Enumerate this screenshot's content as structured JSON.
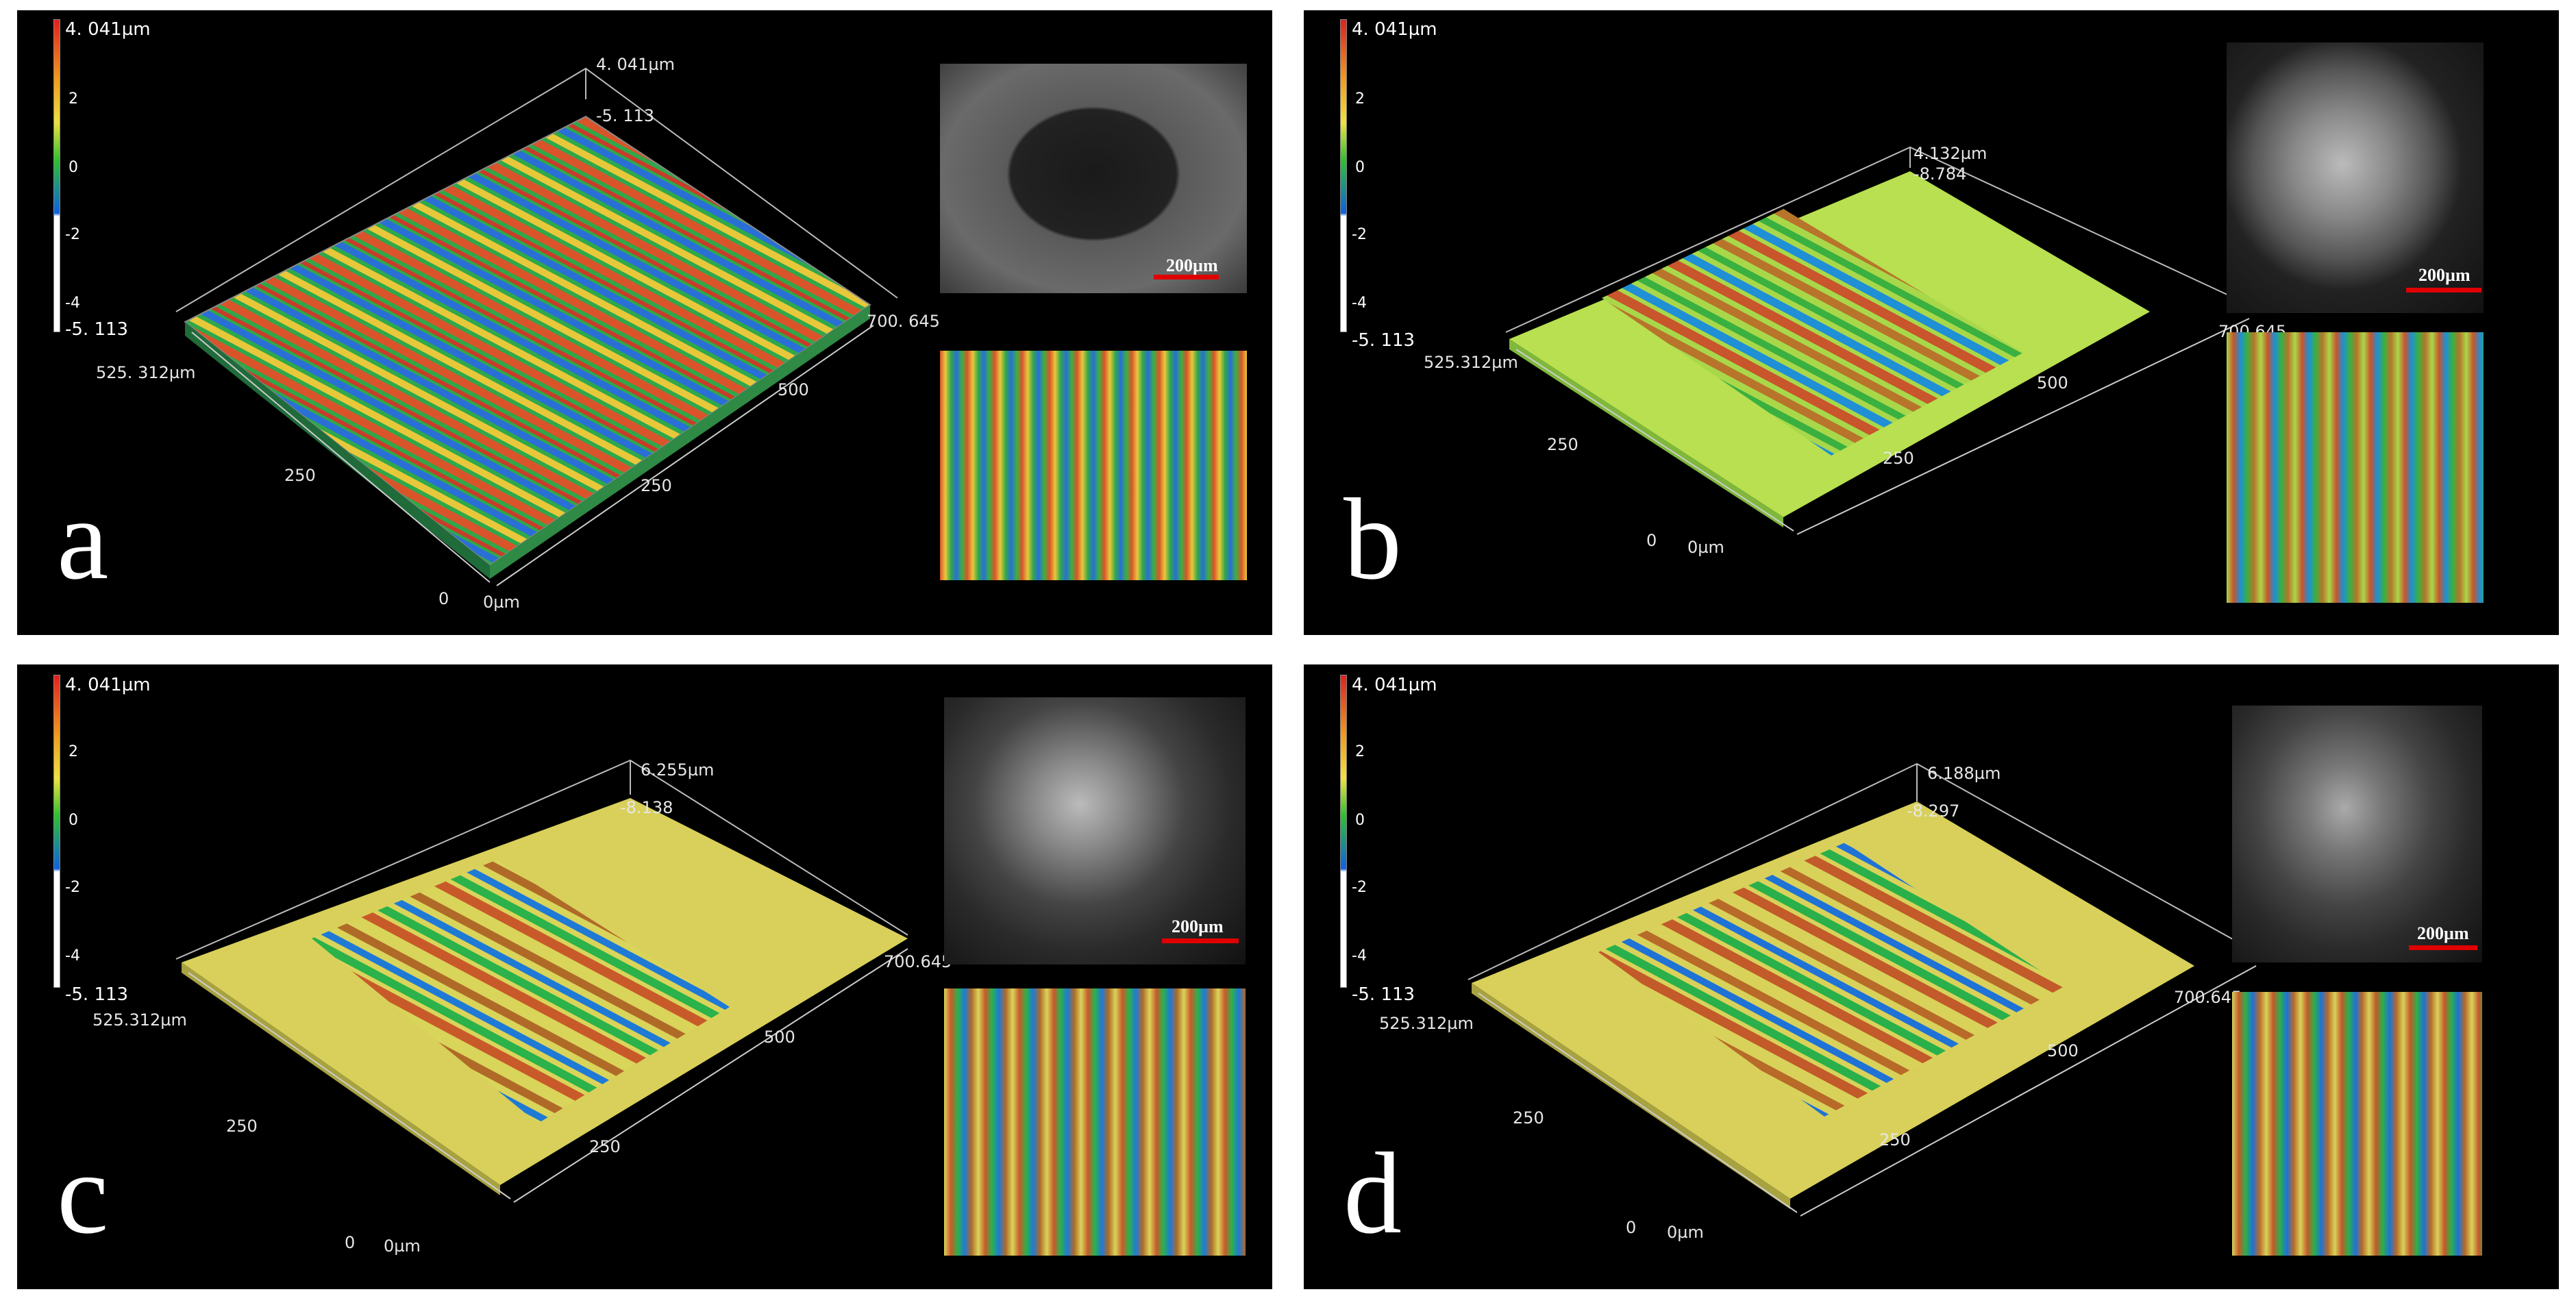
{
  "colorbar": {
    "max": "4. 041µm",
    "ticks": [
      "2",
      "0",
      "-2",
      "-4"
    ],
    "min": "-5. 113"
  },
  "panels": [
    {
      "letter": "a",
      "z_label": "4. 041µm",
      "z_sub": "-5. 113",
      "x_end": "700. 645",
      "x_mid": "500",
      "x_near": "250",
      "y_end": "525. 312µm",
      "y_mid": "250",
      "zero": "0",
      "origin": "0µm",
      "scale": "200µm"
    },
    {
      "letter": "b",
      "z_label": "4.132µm",
      "z_sub": "-8.784",
      "x_end": "700.645",
      "x_mid": "500",
      "x_near": "250",
      "y_end": "525.312µm",
      "y_mid": "250",
      "zero": "0",
      "origin": "0µm",
      "scale": "200µm"
    },
    {
      "letter": "c",
      "z_label": "6.255µm",
      "z_sub": "-8.138",
      "x_end": "700.645",
      "x_mid": "500",
      "x_near": "250",
      "y_end": "525.312µm",
      "y_mid": "250",
      "zero": "0",
      "origin": "0µm",
      "scale": "200µm"
    },
    {
      "letter": "d",
      "z_label": "6.188µm",
      "z_sub": "-8.297",
      "x_end": "700.645",
      "x_mid": "500",
      "x_near": "250",
      "y_end": "525.312µm",
      "y_mid": "250",
      "zero": "0",
      "origin": "0µm",
      "scale": "200µm"
    }
  ],
  "colors": {
    "panel_bg": "#000000",
    "scale_bar": "#e00000",
    "colormap": [
      "#e02020",
      "#f0a020",
      "#f0e040",
      "#30c030",
      "#1060e0",
      "#ffffff"
    ]
  }
}
